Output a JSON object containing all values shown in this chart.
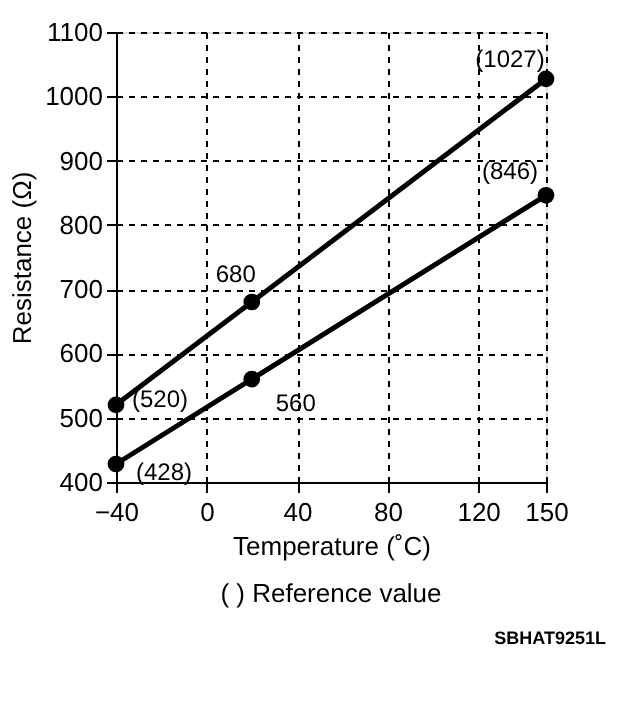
{
  "chart_data": {
    "type": "line",
    "xlabel": "Temperature (˚C)",
    "ylabel": "Resistance (Ω)",
    "annotations": [
      "( ) Reference value",
      "SBHAT9251L"
    ],
    "x": [
      -40,
      20,
      150
    ],
    "series": [
      {
        "color": "#000000",
        "values": [
          520,
          680,
          1027
        ],
        "value_labels": [
          "(520)",
          "680",
          "(1027)"
        ]
      },
      {
        "color": "#000000",
        "values": [
          428,
          560,
          846
        ],
        "value_labels": [
          "(428)",
          "560",
          "(846)"
        ]
      }
    ],
    "xlim": [
      -40,
      150
    ],
    "xticks": [
      -40,
      0,
      40,
      80,
      120,
      150
    ],
    "ylim": [
      400,
      1100
    ],
    "yticks": [
      400,
      500,
      600,
      700,
      800,
      900,
      1000,
      1100
    ],
    "grid": true,
    "marker": "circle",
    "line_style": "solid"
  }
}
